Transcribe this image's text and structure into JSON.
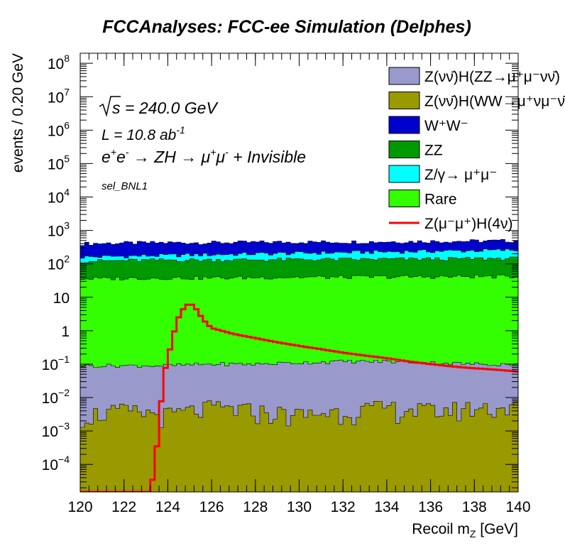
{
  "title": "FCCAnalyses: FCC-ee Simulation (Delphes)",
  "annotations": {
    "sqrt_s": "= 240.0 GeV",
    "lumi": "L = 10.8 ab",
    "lumi_exp": "-1",
    "process": "→ ZH → μ",
    "process_tail": "+ Invisible",
    "selection": "sel_BNL1"
  },
  "legend": [
    {
      "label": "Z(νν̄)H(ZZ→μ⁺μ⁻νν̄)",
      "color": "#9999cc",
      "kind": "box"
    },
    {
      "label": "Z(νν̄)H(WW→μ⁺νμ⁻ν̄)",
      "color": "#999900",
      "kind": "box"
    },
    {
      "label": "W⁺W⁻",
      "color": "#0000cc",
      "kind": "box"
    },
    {
      "label": "ZZ",
      "color": "#009900",
      "kind": "box"
    },
    {
      "label": "Z/γ→ μ⁺μ⁻",
      "color": "#00ffff",
      "kind": "box"
    },
    {
      "label": "Rare",
      "color": "#33ff00",
      "kind": "box"
    },
    {
      "label": "Z(μ⁻μ⁺)H(4ν)",
      "color": "#ff0000",
      "kind": "line"
    }
  ],
  "chart_data": {
    "type": "area",
    "title": "FCCAnalyses: FCC-ee Simulation (Delphes)",
    "xlabel": "Recoil m_Z [GeV]",
    "ylabel": "events / 0.20 GeV",
    "xlim": [
      120,
      140
    ],
    "ylim": [
      1.5e-05,
      200000000.0
    ],
    "yscale": "log",
    "bin_width": 0.2,
    "grid": false,
    "legend_position": "top-right",
    "x_ticks": [
      "120",
      "122",
      "124",
      "126",
      "128",
      "130",
      "132",
      "134",
      "136",
      "138",
      "140"
    ],
    "y_ticks": [
      {
        "v": 0.0001,
        "base": "10",
        "exp": "−4"
      },
      {
        "v": 0.001,
        "base": "10",
        "exp": "−3"
      },
      {
        "v": 0.01,
        "base": "10",
        "exp": "−2"
      },
      {
        "v": 0.1,
        "base": "10",
        "exp": "−1"
      },
      {
        "v": 1,
        "base": "1",
        "exp": ""
      },
      {
        "v": 10,
        "base": "10",
        "exp": ""
      },
      {
        "v": 100,
        "base": "10",
        "exp": "2"
      },
      {
        "v": 1000,
        "base": "10",
        "exp": "3"
      },
      {
        "v": 10000.0,
        "base": "10",
        "exp": "4"
      },
      {
        "v": 100000.0,
        "base": "10",
        "exp": "5"
      },
      {
        "v": 1000000.0,
        "base": "10",
        "exp": "6"
      },
      {
        "v": 10000000.0,
        "base": "10",
        "exp": "7"
      },
      {
        "v": 100000000.0,
        "base": "10",
        "exp": "8"
      }
    ],
    "stacked_series_cumulative_bounds": [
      {
        "name": "Z(νν̄)H(WW→μ⁺νμ⁻ν̄)",
        "x": [
          120,
          122,
          124,
          126,
          128,
          130,
          132,
          134,
          136,
          138,
          140
        ],
        "top": [
          0.003,
          0.004,
          0.003,
          0.005,
          0.004,
          0.003,
          0.004,
          0.005,
          0.004,
          0.005,
          0.005
        ]
      },
      {
        "name": "Z(νν̄)H(ZZ→μ⁺μ⁻νν̄)",
        "x": [
          120,
          122,
          124,
          126,
          128,
          130,
          132,
          134,
          136,
          138,
          140
        ],
        "top": [
          0.09,
          0.09,
          0.09,
          0.1,
          0.1,
          0.11,
          0.12,
          0.12,
          0.11,
          0.1,
          0.1
        ]
      },
      {
        "name": "Rare",
        "x": [
          120,
          122,
          124,
          126,
          128,
          130,
          132,
          134,
          136,
          138,
          140
        ],
        "top": [
          36,
          37,
          38,
          38,
          39,
          40,
          40,
          41,
          41,
          42,
          42
        ]
      },
      {
        "name": "ZZ",
        "x": [
          120,
          122,
          124,
          126,
          128,
          130,
          132,
          134,
          136,
          138,
          140
        ],
        "top": [
          120,
          125,
          130,
          130,
          132,
          135,
          135,
          138,
          140,
          142,
          145
        ]
      },
      {
        "name": "Z/γ→ μ⁺μ⁻",
        "x": [
          120,
          122,
          124,
          126,
          128,
          130,
          132,
          134,
          136,
          138,
          140
        ],
        "top": [
          160,
          170,
          180,
          190,
          200,
          210,
          220,
          230,
          240,
          250,
          260
        ]
      },
      {
        "name": "W⁺W⁻",
        "x": [
          120,
          122,
          124,
          126,
          128,
          130,
          132,
          134,
          136,
          138,
          140
        ],
        "top": [
          400,
          420,
          430,
          430,
          440,
          450,
          450,
          460,
          470,
          480,
          490
        ]
      }
    ],
    "series": [
      {
        "name": "Z(μ⁻μ⁺)H(4ν)",
        "kind": "line",
        "x": [
          120,
          122,
          123.2,
          123.4,
          123.6,
          123.8,
          124.0,
          124.2,
          124.4,
          124.6,
          124.8,
          125.0,
          125.2,
          125.4,
          125.6,
          125.8,
          126,
          127,
          128,
          129,
          130,
          131,
          132,
          133,
          134,
          135,
          136,
          137,
          138,
          139,
          140
        ],
        "values": [
          1.5e-05,
          1.5e-05,
          1.5e-05,
          8e-05,
          0.0015,
          0.04,
          0.15,
          0.5,
          1.8,
          3.5,
          5.5,
          6.5,
          5.5,
          3.5,
          2.2,
          1.6,
          1.2,
          0.8,
          0.6,
          0.45,
          0.35,
          0.28,
          0.22,
          0.18,
          0.15,
          0.12,
          0.1,
          0.085,
          0.075,
          0.068,
          0.06
        ]
      }
    ]
  }
}
